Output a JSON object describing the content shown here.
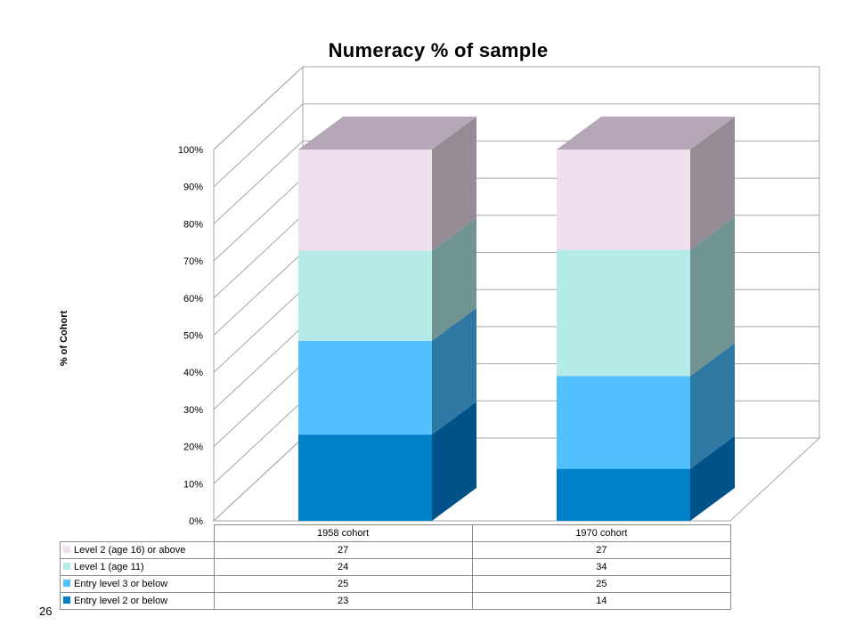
{
  "page_number": "26",
  "chart_data": {
    "type": "bar",
    "stacked": true,
    "percent_stacked": true,
    "three_d": true,
    "title": "Numeracy % of sample",
    "ylabel": "% of Cohort",
    "xlabel": "",
    "ylim": [
      0,
      100
    ],
    "y_ticks": [
      "0%",
      "10%",
      "20%",
      "30%",
      "40%",
      "50%",
      "60%",
      "70%",
      "80%",
      "90%",
      "100%"
    ],
    "categories": [
      "1958 cohort",
      "1970 cohort"
    ],
    "grid": true,
    "legend_placement": "data table below chart",
    "series": [
      {
        "name": "Entry level 2 or below",
        "values": [
          23,
          14
        ],
        "color": "#0080c8",
        "side_color": "#005289"
      },
      {
        "name": "Entry level 3 or below",
        "values": [
          25,
          25
        ],
        "color": "#52c0fc",
        "side_color": "#2f78a3"
      },
      {
        "name": "Level 1 (age 11)",
        "values": [
          24,
          34
        ],
        "color": "#b4eae8",
        "side_color": "#6f9492"
      },
      {
        "name": "Level 2 (age 16) or above",
        "values": [
          27,
          27
        ],
        "color": "#f0dfed",
        "side_color": "#968a94",
        "top_color": "#b5a7b7"
      }
    ],
    "table_order": [
      "Level 2 (age 16) or above",
      "Level 1 (age 11)",
      "Entry level 3 or below",
      "Entry level 2 or below"
    ]
  }
}
